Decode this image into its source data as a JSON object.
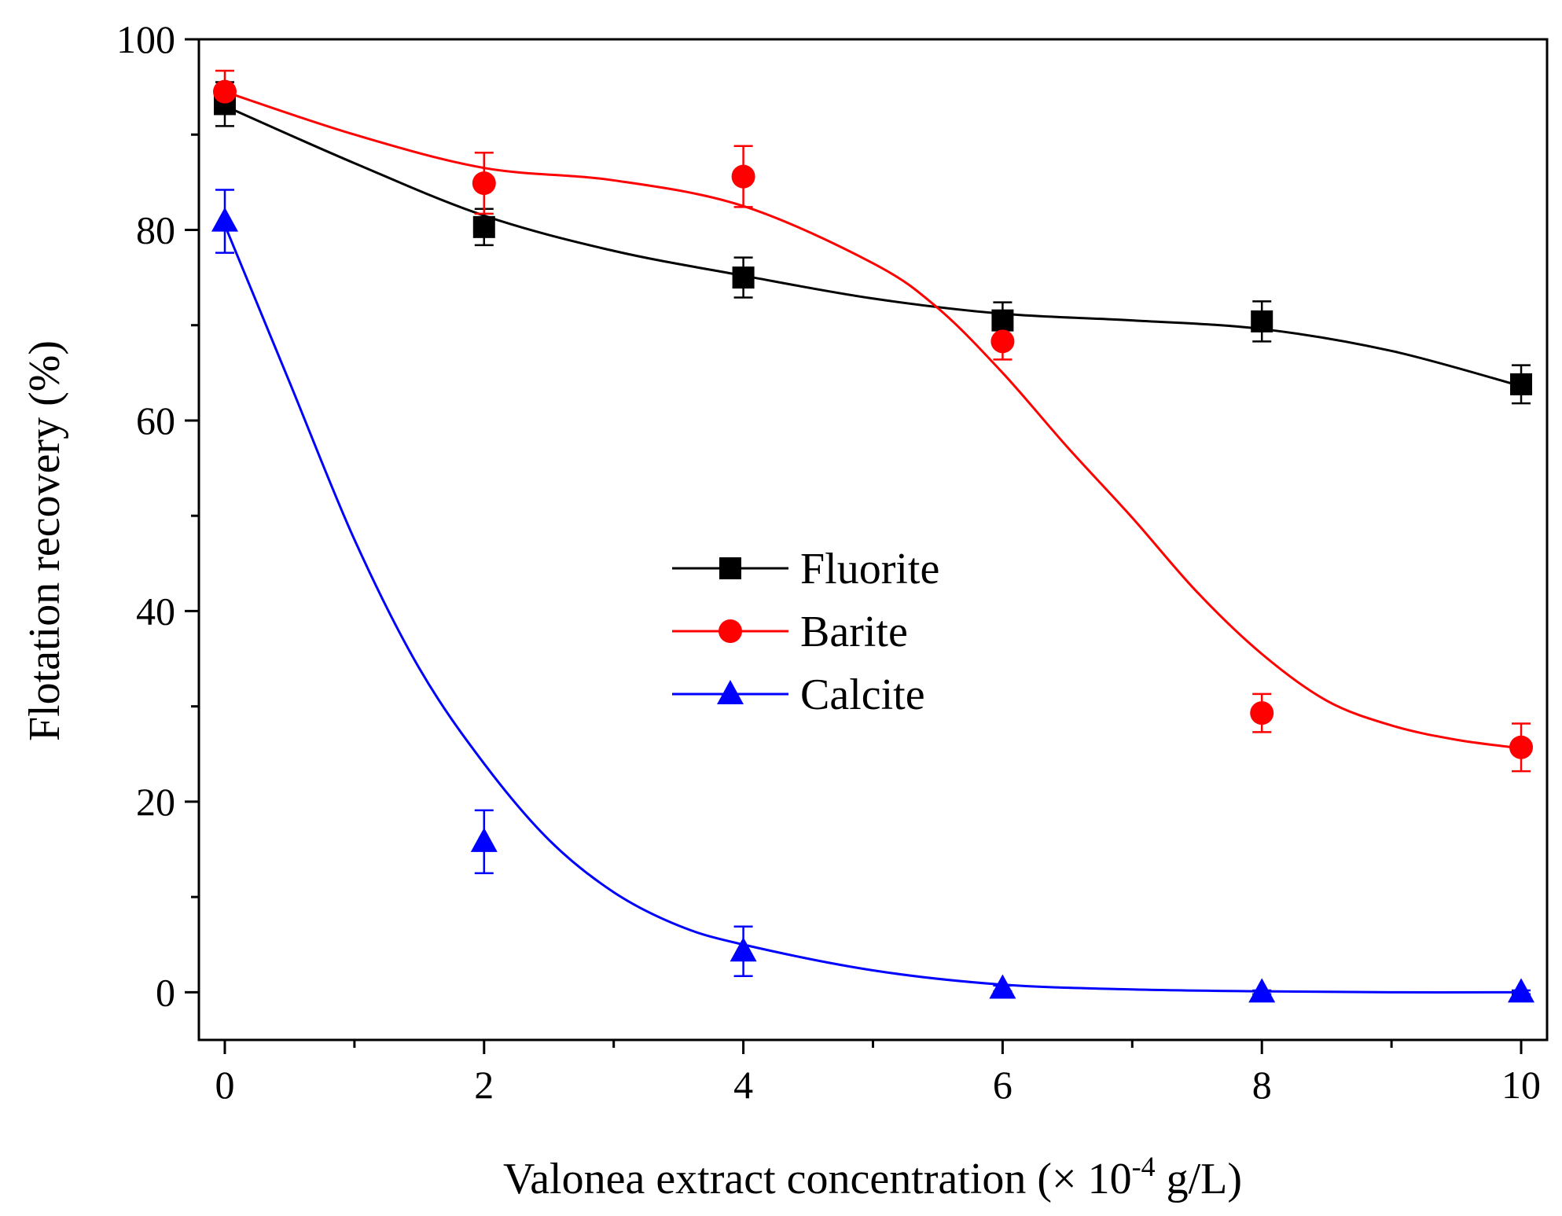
{
  "chart_data": {
    "type": "line",
    "title": "",
    "xlabel": "Valonea extract concentration (×  10",
    "xlabel_sup": "-4",
    "xlabel_suffix": " g/L)",
    "ylabel": "Flotation recovery (%)",
    "xlim": [
      -0.2,
      10.2
    ],
    "ylim": [
      -5,
      100
    ],
    "xticks": [
      0,
      2,
      4,
      6,
      8,
      10
    ],
    "xtick_labels": [
      "0",
      "2",
      "4",
      "6",
      "8",
      "10"
    ],
    "yticks": [
      0,
      20,
      40,
      60,
      80,
      100
    ],
    "ytick_labels": [
      "0",
      "20",
      "40",
      "60",
      "80",
      "100"
    ],
    "legend_position": "center",
    "grid": false,
    "x": [
      0,
      2,
      4,
      6,
      8,
      10
    ],
    "series": [
      {
        "name": "Fluorite",
        "color": "#000000",
        "marker": "square",
        "values": [
          93.2,
          80.3,
          75.0,
          70.5,
          70.4,
          63.8
        ],
        "errors": [
          2.3,
          1.9,
          2.1,
          1.9,
          2.1,
          2.0
        ],
        "fit_x": [
          0,
          1,
          2,
          3,
          4,
          5,
          6,
          7,
          8,
          9,
          10
        ],
        "fit_y": [
          93.0,
          87.0,
          81.5,
          77.8,
          75.2,
          72.8,
          71.2,
          70.5,
          69.6,
          67.3,
          63.6
        ]
      },
      {
        "name": "Barite",
        "color": "#ff0000",
        "marker": "circle",
        "values": [
          94.5,
          84.9,
          85.6,
          68.3,
          29.3,
          25.7
        ],
        "errors": [
          2.2,
          3.2,
          3.2,
          1.9,
          2.0,
          2.5
        ],
        "fit_x": [
          0,
          1,
          2,
          3,
          4,
          5,
          5.5,
          6,
          6.5,
          7,
          7.5,
          8,
          8.5,
          9,
          9.5,
          10
        ],
        "fit_y": [
          94.5,
          90.0,
          86.5,
          85.2,
          82.5,
          76.5,
          71.8,
          65.0,
          57.2,
          49.8,
          42.0,
          35.5,
          30.6,
          28.0,
          26.5,
          25.6
        ]
      },
      {
        "name": "Calcite",
        "color": "#0000ff",
        "marker": "triangle",
        "values": [
          80.9,
          15.8,
          4.3,
          0.4,
          0.0,
          0.0
        ],
        "errors": [
          3.3,
          3.3,
          2.6,
          0.3,
          0.2,
          0.2
        ],
        "fit_x": [
          0,
          0.5,
          1,
          1.5,
          2,
          2.5,
          3,
          3.5,
          4,
          5,
          6,
          7,
          8,
          9,
          10
        ],
        "fit_y": [
          80.5,
          64.0,
          47.5,
          34.0,
          24.0,
          16.0,
          10.5,
          7.0,
          5.0,
          2.3,
          0.8,
          0.3,
          0.1,
          0.0,
          0.0
        ]
      }
    ]
  }
}
